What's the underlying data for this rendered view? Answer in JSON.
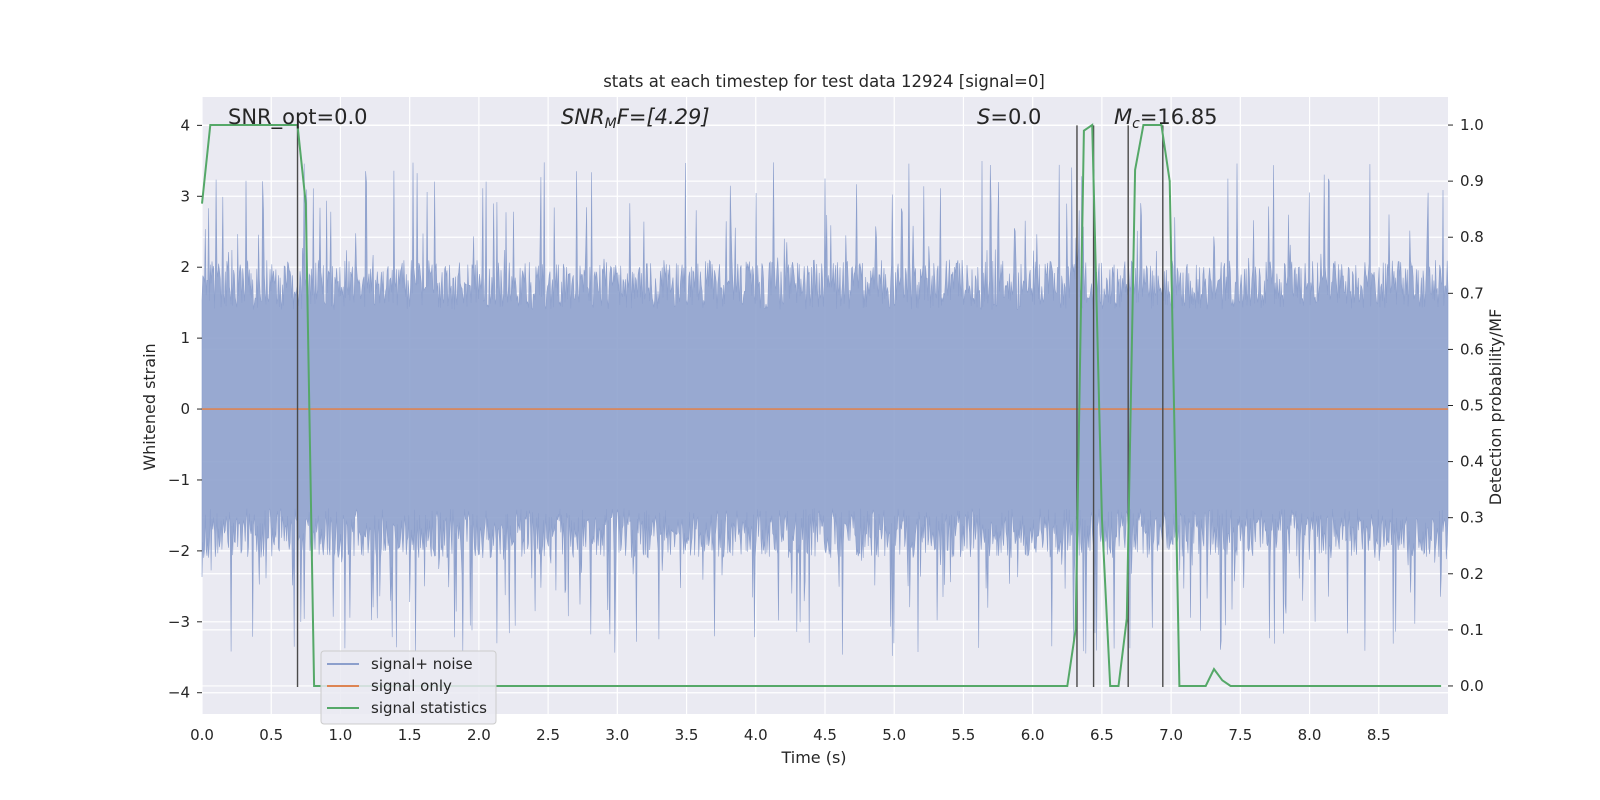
{
  "chart_data": {
    "type": "line",
    "title": "stats at each timestep for test data 12924 [signal=0]",
    "xlabel": "Time (s)",
    "ylabel": "Whitened strain",
    "y2label": "Detection probability/MF",
    "xlim": [
      0.0,
      9.0
    ],
    "ylim": [
      -4.3,
      4.4
    ],
    "y2lim": [
      -0.05,
      1.05
    ],
    "grid": true,
    "legend_position": "lower-left",
    "xticks": [
      "0.0",
      "0.5",
      "1.0",
      "1.5",
      "2.0",
      "2.5",
      "3.0",
      "3.5",
      "4.0",
      "4.5",
      "5.0",
      "5.5",
      "6.0",
      "6.5",
      "7.0",
      "7.5",
      "8.0",
      "8.5"
    ],
    "yticks": [
      "4",
      "3",
      "2",
      "1",
      "0",
      "−1",
      "−2",
      "−3",
      "−4"
    ],
    "y2ticks": [
      "1.0",
      "0.9",
      "0.8",
      "0.7",
      "0.6",
      "0.5",
      "0.4",
      "0.3",
      "0.2",
      "0.1",
      "0.0"
    ],
    "annotations": {
      "snr_opt": "SNR_opt=0.0",
      "snr_mf_main": "SNR",
      "snr_mf_sub": "M",
      "snr_mf_rest": "F=[4.29]",
      "s_main": "S",
      "s_rest": "=0.0",
      "mc_main": "M",
      "mc_sub": "c",
      "mc_rest": "=16.85"
    },
    "series": [
      {
        "name": "signal+ noise",
        "color": "#8c9fcc",
        "style": "noise band, amplitude ~ ±2 with peaks to ±3.9"
      },
      {
        "name": "signal only",
        "color": "#dd8452",
        "x": [
          0.0,
          9.0
        ],
        "y": [
          0.0,
          0.0
        ]
      },
      {
        "name": "signal statistics",
        "color": "#55a868",
        "axis": "right",
        "x": [
          0.0,
          0.06,
          0.12,
          0.62,
          0.69,
          0.75,
          0.81,
          6.25,
          6.31,
          6.37,
          6.43,
          6.5,
          6.56,
          6.62,
          6.68,
          6.74,
          6.8,
          6.93,
          6.99,
          7.06,
          7.12,
          7.25,
          7.31,
          7.37,
          7.43,
          8.95
        ],
        "y": [
          0.86,
          1.0,
          1.0,
          1.0,
          1.0,
          0.86,
          0.0,
          0.0,
          0.1,
          0.99,
          1.0,
          0.3,
          0.0,
          0.0,
          0.12,
          0.92,
          1.0,
          1.0,
          0.9,
          0.0,
          0.0,
          0.0,
          0.03,
          0.01,
          0.0,
          0.0
        ]
      }
    ],
    "vertical_markers": [
      0.69,
      6.32,
      6.44,
      6.69,
      6.94
    ],
    "colors": {
      "plot_background": "#eaeaf2",
      "grid": "#ffffff",
      "noise": "#8c9fcc",
      "signal": "#dd8452",
      "stats": "#55a868",
      "marker": "#4a4a4a"
    }
  }
}
